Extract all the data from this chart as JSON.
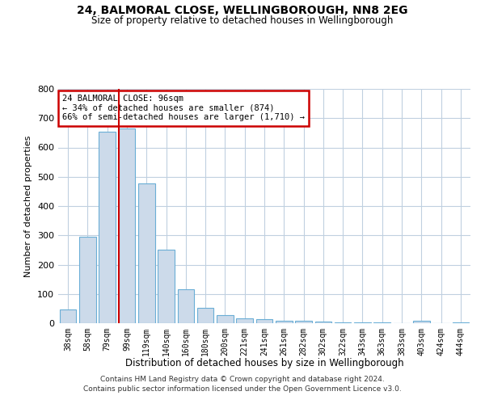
{
  "title1": "24, BALMORAL CLOSE, WELLINGBOROUGH, NN8 2EG",
  "title2": "Size of property relative to detached houses in Wellingborough",
  "xlabel": "Distribution of detached houses by size in Wellingborough",
  "ylabel": "Number of detached properties",
  "categories": [
    "38sqm",
    "58sqm",
    "79sqm",
    "99sqm",
    "119sqm",
    "140sqm",
    "160sqm",
    "180sqm",
    "200sqm",
    "221sqm",
    "241sqm",
    "261sqm",
    "282sqm",
    "302sqm",
    "322sqm",
    "343sqm",
    "363sqm",
    "383sqm",
    "403sqm",
    "424sqm",
    "444sqm"
  ],
  "values": [
    47,
    295,
    655,
    665,
    478,
    250,
    115,
    53,
    27,
    17,
    13,
    8,
    7,
    5,
    4,
    3,
    2,
    1,
    8,
    1,
    2
  ],
  "bar_color": "#ccdaea",
  "bar_edge_color": "#6aaed6",
  "red_line_index": 3,
  "annotation_line1": "24 BALMORAL CLOSE: 96sqm",
  "annotation_line2": "← 34% of detached houses are smaller (874)",
  "annotation_line3": "66% of semi-detached houses are larger (1,710) →",
  "annotation_box_facecolor": "#ffffff",
  "annotation_box_edgecolor": "#cc0000",
  "red_line_color": "#cc0000",
  "ylim_max": 800,
  "yticks": [
    0,
    100,
    200,
    300,
    400,
    500,
    600,
    700,
    800
  ],
  "background_color": "#ffffff",
  "grid_color": "#c0d0e0",
  "footer1": "Contains HM Land Registry data © Crown copyright and database right 2024.",
  "footer2": "Contains public sector information licensed under the Open Government Licence v3.0."
}
